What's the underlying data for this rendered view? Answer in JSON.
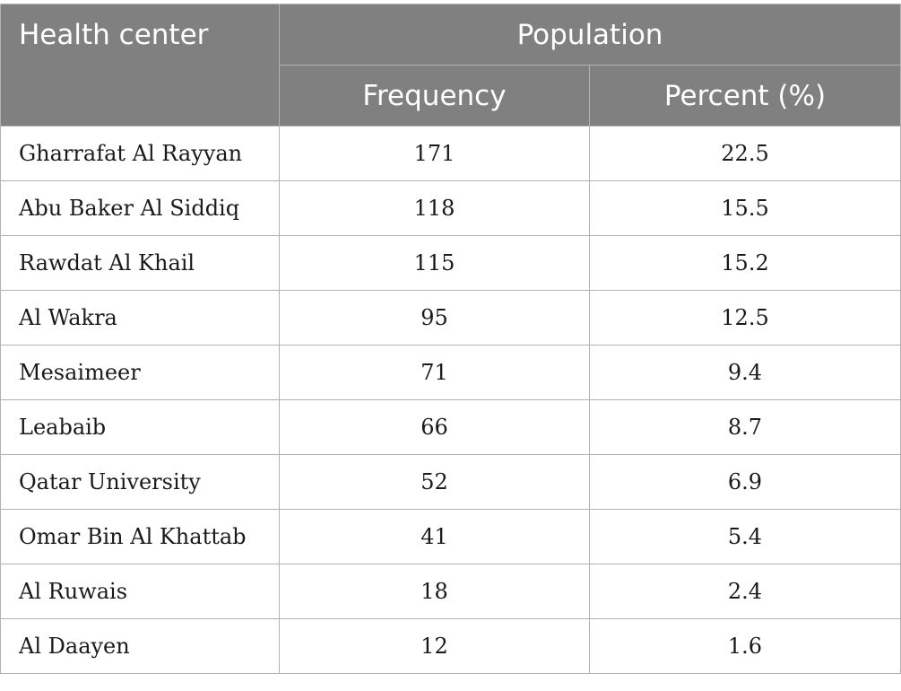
{
  "table": {
    "header": {
      "health_center": "Health center",
      "population": "Population",
      "frequency": "Frequency",
      "percent": "Percent (%)"
    },
    "rows": [
      {
        "center": "Gharrafat Al Rayyan",
        "frequency": "171",
        "percent": "22.5"
      },
      {
        "center": "Abu Baker Al Siddiq",
        "frequency": "118",
        "percent": "15.5"
      },
      {
        "center": "Rawdat Al Khail",
        "frequency": "115",
        "percent": "15.2"
      },
      {
        "center": "Al Wakra",
        "frequency": "95",
        "percent": "12.5"
      },
      {
        "center": "Mesaimeer",
        "frequency": "71",
        "percent": "9.4"
      },
      {
        "center": "Leabaib",
        "frequency": "66",
        "percent": "8.7"
      },
      {
        "center": "Qatar University",
        "frequency": "52",
        "percent": "6.9"
      },
      {
        "center": "Omar Bin Al Khattab",
        "frequency": "41",
        "percent": "5.4"
      },
      {
        "center": "Al Ruwais",
        "frequency": "18",
        "percent": "2.4"
      },
      {
        "center": "Al Daayen",
        "frequency": "12",
        "percent": "1.6"
      }
    ]
  }
}
